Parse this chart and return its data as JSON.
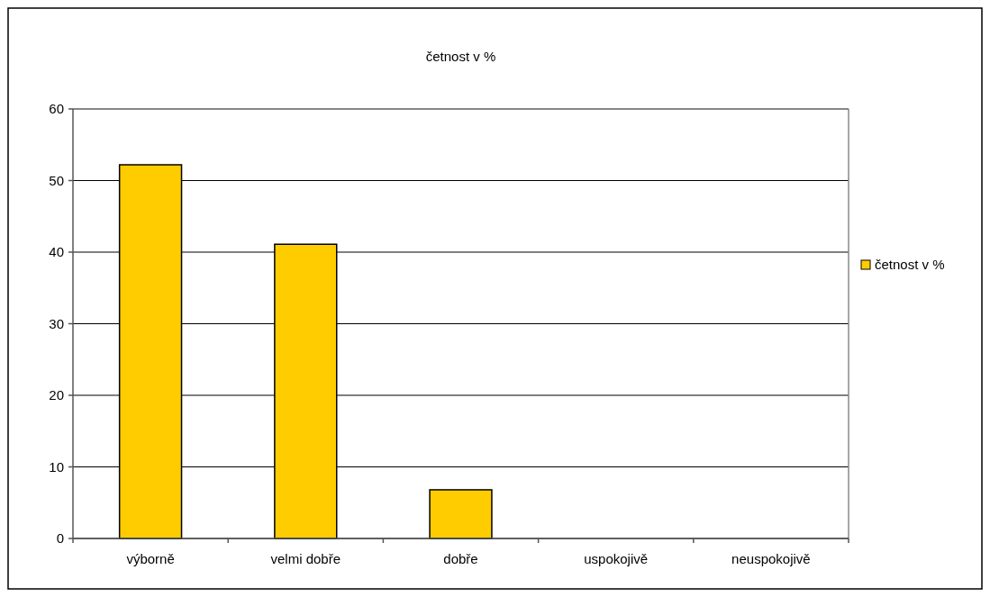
{
  "chart_data": {
    "type": "bar",
    "title": "četnost v %",
    "categories": [
      "výborně",
      "velmi dobře",
      "dobře",
      "uspokojivě",
      "neuspokojivě"
    ],
    "series": [
      {
        "name": "četnost v %",
        "color": "#ffcc00",
        "values": [
          52.2,
          41.1,
          6.8,
          0,
          0
        ]
      }
    ],
    "ylim": [
      0,
      60
    ],
    "yticks": [
      0,
      10,
      20,
      30,
      40,
      50,
      60
    ],
    "grid": "y",
    "legend": "right"
  }
}
